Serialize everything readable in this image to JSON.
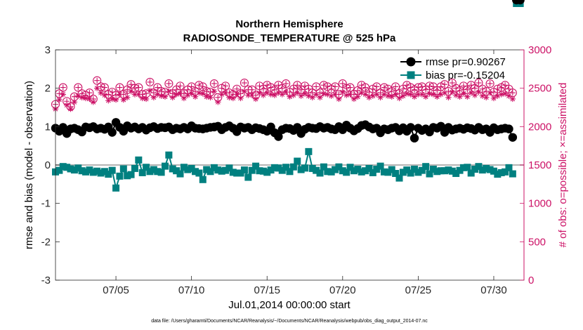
{
  "chart_data": {
    "type": "line",
    "title": "Northern Hemisphere",
    "subtitle": "RADIOSONDE_TEMPERATURE @ 525 hPa",
    "xlabel": "Jul.01,2014 00:00:00 start",
    "ylabel": "rmse and bias (model - observation)",
    "y2label": "# of obs: o=possible; ×=assimilated",
    "footnote": "data file: /Users/gharamti/Documents/NCAR/Reanalysis/~/Documents/NCAR/Reanalysis/webpub/obs_diag_output_2014-07.nc",
    "xlim": [
      1,
      32
    ],
    "ylim": [
      -3,
      3
    ],
    "y2lim": [
      0,
      3000
    ],
    "x_ticks": [
      5,
      10,
      15,
      20,
      25,
      30
    ],
    "x_tick_labels": [
      "07/05",
      "07/10",
      "07/15",
      "07/20",
      "07/25",
      "07/30"
    ],
    "y_ticks": [
      -3,
      -2,
      -1,
      0,
      1,
      2,
      3
    ],
    "y_tick_labels": [
      "-3",
      "-2",
      "-1",
      "0",
      "1",
      "2",
      "3"
    ],
    "y2_ticks": [
      0,
      500,
      1000,
      1500,
      2000,
      2500,
      3000
    ],
    "y2_tick_labels": [
      "0",
      "500",
      "1000",
      "1500",
      "2000",
      "2500",
      "3000"
    ],
    "zero_line": 0,
    "colors": {
      "rmse": "#000000",
      "bias": "#008080",
      "obs": "#cc1166",
      "zero": "#b4b4b4",
      "axis": "#262626"
    },
    "legend": [
      {
        "name": "rmse pr=0.90267",
        "color": "#000000",
        "marker": "circle"
      },
      {
        "name": "bias pr=-0.15204",
        "color": "#008080",
        "marker": "square"
      }
    ],
    "legend_position": "top-right",
    "x": [
      1.0,
      1.25,
      1.5,
      1.75,
      2.0,
      2.25,
      2.5,
      2.75,
      3.0,
      3.25,
      3.5,
      3.75,
      4.0,
      4.25,
      4.5,
      4.75,
      5.0,
      5.25,
      5.5,
      5.75,
      6.0,
      6.25,
      6.5,
      6.75,
      7.0,
      7.25,
      7.5,
      7.75,
      8.0,
      8.25,
      8.5,
      8.75,
      9.0,
      9.25,
      9.5,
      9.75,
      10.0,
      10.25,
      10.5,
      10.75,
      11.0,
      11.25,
      11.5,
      11.75,
      12.0,
      12.25,
      12.5,
      12.75,
      13.0,
      13.25,
      13.5,
      13.75,
      14.0,
      14.25,
      14.5,
      14.75,
      15.0,
      15.25,
      15.5,
      15.75,
      16.0,
      16.25,
      16.5,
      16.75,
      17.0,
      17.25,
      17.5,
      17.75,
      18.0,
      18.25,
      18.5,
      18.75,
      19.0,
      19.25,
      19.5,
      19.75,
      20.0,
      20.25,
      20.5,
      20.75,
      21.0,
      21.25,
      21.5,
      21.75,
      22.0,
      22.25,
      22.5,
      22.75,
      23.0,
      23.25,
      23.5,
      23.75,
      24.0,
      24.25,
      24.5,
      24.75,
      25.0,
      25.25,
      25.5,
      25.75,
      26.0,
      26.25,
      26.5,
      26.75,
      27.0,
      27.25,
      27.5,
      27.75,
      28.0,
      28.25,
      28.5,
      28.75,
      29.0,
      29.25,
      29.5,
      29.75,
      30.0,
      30.25,
      30.5,
      30.75,
      31.0,
      31.25,
      31.5,
      31.75
    ],
    "rmse": [
      0.96,
      0.88,
      0.98,
      0.82,
      0.94,
      0.96,
      0.92,
      0.86,
      0.99,
      0.97,
      1.0,
      0.94,
      0.96,
      0.93,
      0.99,
      0.85,
      1.11,
      0.98,
      0.88,
      1.02,
      0.96,
      0.99,
      0.94,
      0.98,
      0.91,
      0.97,
      1.0,
      0.95,
      0.98,
      0.97,
      0.99,
      0.92,
      0.96,
      0.94,
      0.98,
      0.94,
      1.02,
      0.96,
      0.95,
      0.94,
      0.96,
      0.98,
      0.99,
      1.01,
      0.92,
      0.98,
      1.02,
      0.96,
      0.87,
      0.99,
      0.96,
      0.98,
      0.92,
      0.97,
      0.95,
      0.92,
      0.88,
      0.99,
      0.84,
      0.74,
      0.92,
      0.96,
      0.95,
      0.9,
      0.98,
      0.82,
      0.93,
      0.98,
      0.96,
      0.95,
      1.0,
      0.96,
      0.98,
      0.94,
      0.92,
      1.0,
      0.92,
      1.04,
      0.96,
      0.89,
      0.95,
      1.03,
      1.05,
      0.99,
      0.94,
      0.96,
      0.84,
      0.94,
      0.92,
      0.96,
      0.98,
      0.89,
      0.97,
      0.88,
      0.98,
      0.7,
      0.96,
      0.9,
      0.94,
      0.86,
      0.98,
      0.96,
      1.01,
      0.85,
      0.98,
      0.91,
      0.94,
      0.96,
      0.93,
      0.97,
      0.95,
      0.91,
      0.98,
      0.92,
      0.94,
      0.85,
      0.97,
      0.92,
      0.94,
      0.96,
      0.94,
      0.72
    ],
    "bias": [
      -0.18,
      -0.14,
      -0.04,
      -0.06,
      -0.1,
      -0.13,
      -0.08,
      -0.15,
      -0.18,
      -0.13,
      -0.19,
      -0.16,
      -0.21,
      -0.17,
      -0.24,
      -0.14,
      -0.6,
      -0.29,
      -0.1,
      -0.28,
      -0.25,
      -0.09,
      0.13,
      -0.2,
      -0.06,
      -0.17,
      -0.12,
      -0.17,
      -0.19,
      -0.03,
      0.26,
      -0.1,
      -0.15,
      -0.23,
      -0.06,
      -0.12,
      -0.09,
      -0.17,
      -0.21,
      -0.38,
      -0.12,
      -0.17,
      -0.07,
      -0.13,
      -0.16,
      -0.14,
      -0.08,
      -0.19,
      -0.21,
      -0.21,
      -0.13,
      -0.32,
      -0.14,
      -0.03,
      -0.15,
      -0.16,
      -0.19,
      -0.13,
      -0.07,
      -0.08,
      -0.14,
      -0.06,
      -0.17,
      -0.05,
      0.1,
      -0.12,
      -0.08,
      0.35,
      -0.09,
      -0.14,
      -0.21,
      -0.05,
      -0.17,
      -0.18,
      -0.12,
      -0.05,
      -0.15,
      -0.19,
      -0.06,
      -0.15,
      -0.11,
      -0.18,
      -0.15,
      -0.09,
      -0.2,
      -0.11,
      -0.03,
      -0.18,
      -0.19,
      -0.12,
      -0.22,
      -0.34,
      -0.19,
      -0.13,
      -0.21,
      -0.11,
      -0.19,
      -0.14,
      -0.04,
      -0.23,
      -0.11,
      -0.17,
      -0.15,
      -0.15,
      -0.13,
      -0.16,
      -0.22,
      -0.14,
      -0.07,
      -0.06,
      -0.21,
      -0.11,
      -0.04,
      -0.13,
      -0.09,
      -0.12,
      -0.16,
      -0.24,
      -0.2,
      -0.18,
      -0.07,
      -0.23
    ],
    "obs_possible": [
      2290,
      2430,
      2510,
      2330,
      2260,
      2390,
      2510,
      2430,
      2410,
      2440,
      2360,
      2600,
      2520,
      2510,
      2420,
      2450,
      2410,
      2510,
      2420,
      2480,
      2550,
      2500,
      2510,
      2420,
      2430,
      2580,
      2440,
      2510,
      2460,
      2450,
      2560,
      2430,
      2480,
      2530,
      2430,
      2480,
      2520,
      2460,
      2540,
      2520,
      2460,
      2450,
      2560,
      2380,
      2500,
      2530,
      2440,
      2420,
      2490,
      2430,
      2570,
      2480,
      2480,
      2410,
      2530,
      2490,
      2540,
      2510,
      2480,
      2540,
      2500,
      2560,
      2450,
      2490,
      2540,
      2480,
      2530,
      2490,
      2440,
      2520,
      2440,
      2540,
      2520,
      2490,
      2520,
      2420,
      2560,
      2500,
      2510,
      2420,
      2470,
      2540,
      2510,
      2450,
      2490,
      2520,
      2440,
      2510,
      2490,
      2460,
      2520,
      2430,
      2490,
      2540,
      2510,
      2480,
      2510,
      2520,
      2480,
      2530,
      2520,
      2470,
      2520,
      2550,
      2460,
      2570,
      2500,
      2470,
      2530,
      2480,
      2540,
      2500,
      2570,
      2490,
      2460,
      2560,
      2450,
      2490,
      2510,
      2540,
      2490,
      2440
    ],
    "obs_assimilated": [
      2230,
      2350,
      2420,
      2280,
      2230,
      2320,
      2400,
      2380,
      2370,
      2360,
      2320,
      2500,
      2440,
      2410,
      2340,
      2360,
      2350,
      2420,
      2350,
      2380,
      2460,
      2420,
      2420,
      2370,
      2360,
      2470,
      2380,
      2420,
      2400,
      2390,
      2460,
      2380,
      2420,
      2430,
      2370,
      2410,
      2430,
      2390,
      2440,
      2430,
      2390,
      2380,
      2460,
      2320,
      2420,
      2440,
      2380,
      2370,
      2420,
      2370,
      2460,
      2410,
      2410,
      2360,
      2440,
      2410,
      2440,
      2420,
      2410,
      2440,
      2420,
      2450,
      2390,
      2410,
      2440,
      2400,
      2430,
      2400,
      2380,
      2420,
      2380,
      2430,
      2420,
      2400,
      2420,
      2360,
      2450,
      2410,
      2420,
      2360,
      2390,
      2440,
      2420,
      2380,
      2400,
      2420,
      2380,
      2420,
      2400,
      2390,
      2420,
      2370,
      2400,
      2430,
      2420,
      2390,
      2420,
      2420,
      2390,
      2430,
      2420,
      2390,
      2420,
      2440,
      2380,
      2450,
      2410,
      2390,
      2430,
      2390,
      2440,
      2410,
      2450,
      2400,
      2380,
      2440,
      2370,
      2400,
      2420,
      2430,
      2400,
      2360
    ]
  }
}
